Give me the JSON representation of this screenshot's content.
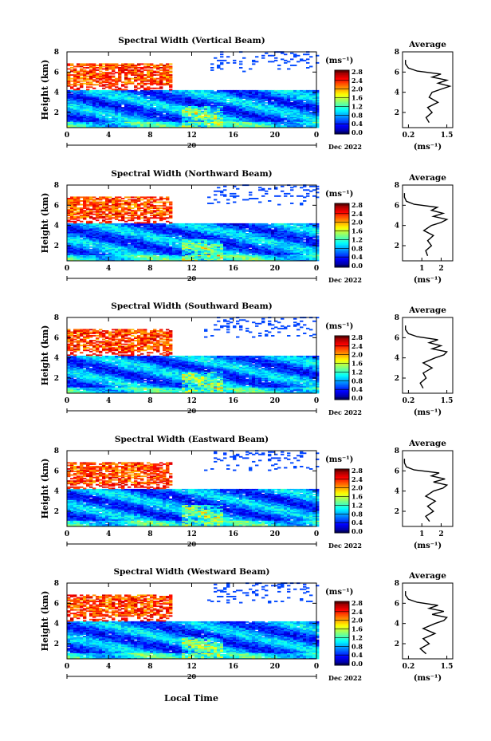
{
  "chart_data": [
    {
      "type": "heatmap",
      "title": "Spectral Width (Vertical Beam)",
      "ylabel": "Height (km)",
      "yticks": [
        "2",
        "4",
        "6",
        "8"
      ],
      "xticks": [
        "0",
        "4",
        "8",
        "12",
        "16",
        "20",
        "0"
      ],
      "date_marker": "20",
      "date_label": "Dec 2022",
      "ylim": [
        0.5,
        8
      ],
      "xlim": [
        0,
        24
      ],
      "colorbar": {
        "unit": "(ms⁻¹)",
        "ticks": [
          "0.0",
          "0.4",
          "0.8",
          "1.2",
          "1.6",
          "2.0",
          "2.4",
          "2.8"
        ],
        "range": [
          0,
          3.0
        ]
      },
      "average_profile": {
        "title": "Average",
        "xlabel": "(ms⁻¹)",
        "xticks": [
          "0.2",
          "1.5"
        ],
        "yticks": [
          "2",
          "4",
          "6",
          "8"
        ],
        "xlim": [
          0.0,
          1.7
        ],
        "height": [
          1.0,
          1.5,
          2.0,
          2.5,
          3.0,
          3.5,
          4.0,
          4.3,
          4.6,
          4.9,
          5.2,
          5.5,
          5.8,
          6.1,
          6.4,
          6.8,
          7.2
        ],
        "width": [
          0.9,
          0.8,
          1.0,
          0.85,
          1.2,
          0.9,
          1.0,
          1.3,
          1.6,
          1.2,
          1.5,
          1.0,
          1.3,
          0.5,
          0.2,
          0.1,
          0.1
        ]
      }
    },
    {
      "type": "heatmap",
      "title": "Spectral Width (Northward Beam)",
      "ylabel": "Height (km)",
      "yticks": [
        "2",
        "4",
        "6",
        "8"
      ],
      "xticks": [
        "0",
        "4",
        "8",
        "12",
        "16",
        "20",
        "0"
      ],
      "date_marker": "20",
      "date_label": "Dec 2022",
      "ylim": [
        0.5,
        8
      ],
      "xlim": [
        0,
        24
      ],
      "colorbar": {
        "unit": "(ms⁻¹)",
        "ticks": [
          "0.0",
          "0.4",
          "0.8",
          "1.2",
          "1.6",
          "2.0",
          "2.4",
          "2.8"
        ],
        "range": [
          0,
          3.0
        ]
      },
      "average_profile": {
        "title": "Average",
        "xlabel": "(ms⁻¹)",
        "xticks": [
          "1",
          "2"
        ],
        "yticks": [
          "2",
          "4",
          "6",
          "8"
        ],
        "xlim": [
          0.0,
          2.6
        ],
        "height": [
          1.0,
          1.5,
          2.0,
          2.5,
          3.0,
          3.5,
          4.0,
          4.3,
          4.6,
          4.9,
          5.2,
          5.5,
          5.8,
          6.1,
          6.4,
          6.8,
          7.2
        ],
        "width": [
          1.3,
          1.2,
          1.5,
          1.3,
          1.6,
          1.1,
          1.5,
          2.0,
          2.3,
          1.6,
          2.1,
          1.5,
          1.8,
          0.6,
          0.2,
          0.1,
          0.1
        ]
      }
    },
    {
      "type": "heatmap",
      "title": "Spectral Width (Southward Beam)",
      "ylabel": "Height (km)",
      "yticks": [
        "2",
        "4",
        "6",
        "8"
      ],
      "xticks": [
        "0",
        "4",
        "8",
        "12",
        "16",
        "20",
        "0"
      ],
      "date_marker": "20",
      "date_label": "Dec 2022",
      "ylim": [
        0.5,
        8
      ],
      "xlim": [
        0,
        24
      ],
      "colorbar": {
        "unit": "(ms⁻¹)",
        "ticks": [
          "0.0",
          "0.4",
          "0.8",
          "1.2",
          "1.6",
          "2.0",
          "2.4",
          "2.8"
        ],
        "range": [
          0,
          3.0
        ]
      },
      "average_profile": {
        "title": "Average",
        "xlabel": "(ms⁻¹)",
        "xticks": [
          "0.2",
          "1.5"
        ],
        "yticks": [
          "2",
          "4",
          "6",
          "8"
        ],
        "xlim": [
          0.0,
          1.7
        ],
        "height": [
          1.0,
          1.5,
          2.0,
          2.5,
          3.0,
          3.5,
          4.0,
          4.3,
          4.6,
          4.9,
          5.2,
          5.5,
          5.8,
          6.1,
          6.4,
          6.8,
          7.2
        ],
        "width": [
          0.7,
          0.6,
          0.8,
          0.7,
          1.0,
          0.7,
          1.1,
          1.4,
          1.5,
          1.0,
          1.3,
          0.9,
          1.2,
          0.5,
          0.2,
          0.1,
          0.1
        ]
      }
    },
    {
      "type": "heatmap",
      "title": "Spectral Width (Eastward Beam)",
      "ylabel": "Height (km)",
      "yticks": [
        "2",
        "4",
        "6",
        "8"
      ],
      "xticks": [
        "0",
        "4",
        "8",
        "12",
        "16",
        "20",
        "0"
      ],
      "date_marker": "20",
      "date_label": "Dec 2022",
      "ylim": [
        0.5,
        8
      ],
      "xlim": [
        0,
        24
      ],
      "colorbar": {
        "unit": "(ms⁻¹)",
        "ticks": [
          "0.0",
          "0.4",
          "0.8",
          "1.2",
          "1.6",
          "2.0",
          "2.4",
          "2.8"
        ],
        "range": [
          0,
          3.0
        ]
      },
      "average_profile": {
        "title": "Average",
        "xlabel": "(ms⁻¹)",
        "xticks": [
          "1",
          "2"
        ],
        "yticks": [
          "2",
          "4",
          "6",
          "8"
        ],
        "xlim": [
          0.0,
          2.6
        ],
        "height": [
          1.0,
          1.5,
          2.0,
          2.5,
          3.0,
          3.5,
          4.0,
          4.3,
          4.6,
          4.9,
          5.2,
          5.5,
          5.8,
          6.1,
          6.4,
          6.8,
          7.2
        ],
        "width": [
          1.4,
          1.2,
          1.6,
          1.3,
          1.7,
          1.2,
          1.6,
          2.1,
          2.3,
          1.6,
          2.2,
          1.5,
          1.9,
          0.6,
          0.2,
          0.1,
          0.1
        ]
      }
    },
    {
      "type": "heatmap",
      "title": "Spectral Width (Westward Beam)",
      "ylabel": "Height (km)",
      "yticks": [
        "2",
        "4",
        "6",
        "8"
      ],
      "xticks": [
        "0",
        "4",
        "8",
        "12",
        "16",
        "20",
        "0"
      ],
      "date_marker": "20",
      "date_label": "Dec 2022",
      "ylim": [
        0.5,
        8
      ],
      "xlim": [
        0,
        24
      ],
      "colorbar": {
        "unit": "(ms⁻¹)",
        "ticks": [
          "0.0",
          "0.4",
          "0.8",
          "1.2",
          "1.6",
          "2.0",
          "2.4",
          "2.8"
        ],
        "range": [
          0,
          3.0
        ]
      },
      "average_profile": {
        "title": "Average",
        "xlabel": "(ms⁻¹)",
        "xticks": [
          "0.2",
          "1.5"
        ],
        "yticks": [
          "2",
          "4",
          "6",
          "8"
        ],
        "xlim": [
          0.0,
          1.7
        ],
        "height": [
          1.0,
          1.5,
          2.0,
          2.5,
          3.0,
          3.5,
          4.0,
          4.3,
          4.6,
          4.9,
          5.2,
          5.5,
          5.8,
          6.1,
          6.4,
          6.8,
          7.2
        ],
        "width": [
          0.8,
          0.6,
          0.9,
          0.7,
          1.1,
          0.7,
          1.1,
          1.4,
          1.5,
          1.0,
          1.4,
          0.9,
          1.2,
          0.5,
          0.2,
          0.1,
          0.1
        ]
      }
    }
  ],
  "xlabel": "Local Time"
}
